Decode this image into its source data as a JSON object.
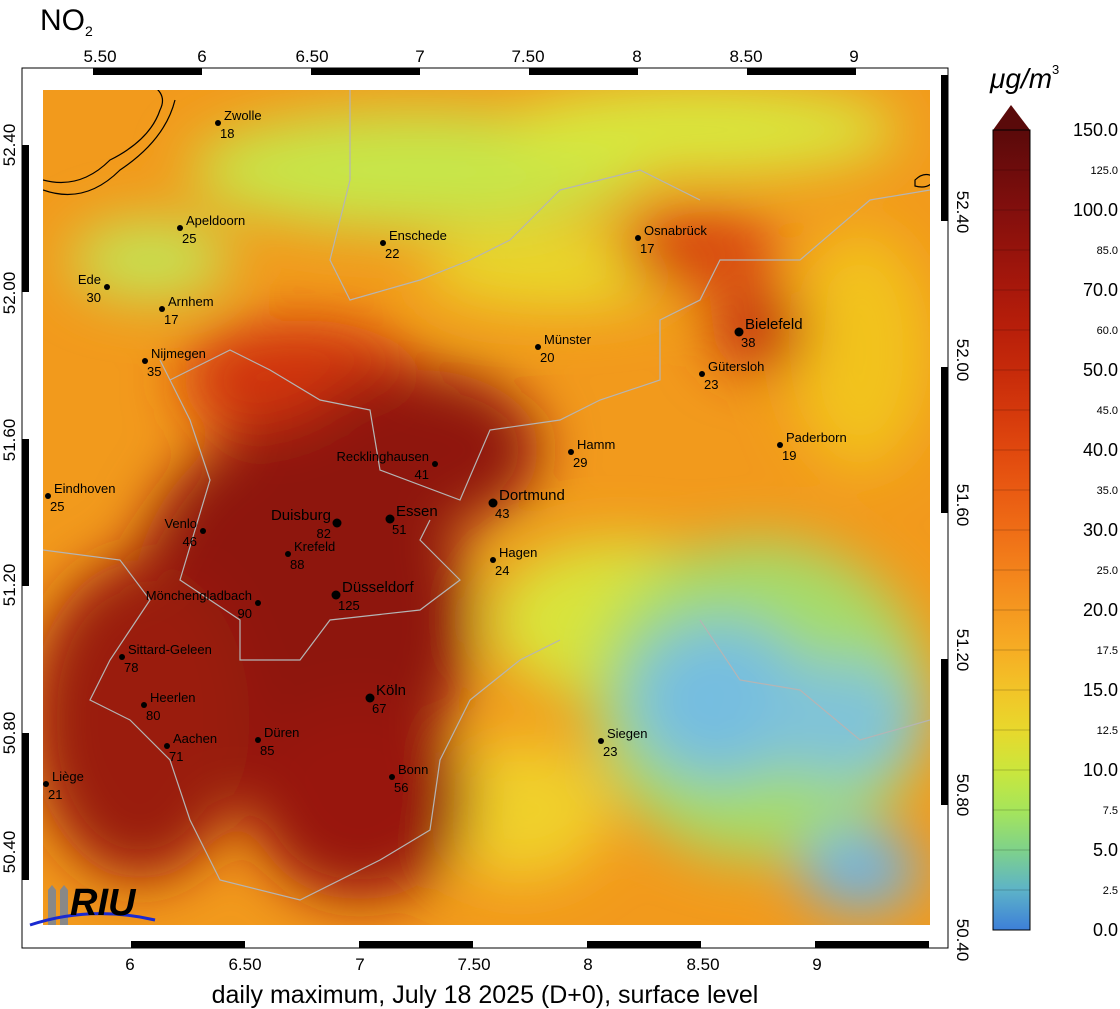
{
  "title": {
    "text": "NO",
    "subscript": "2"
  },
  "unit": {
    "text": "μg/m",
    "superscript": "3"
  },
  "caption": "daily maximum, July 18 2025 (D+0), surface level",
  "logo": "RIU",
  "top_axis": [
    "5.50",
    "6",
    "6.50",
    "7",
    "7.50",
    "8",
    "8.50",
    "9"
  ],
  "bottom_axis": [
    "6",
    "6.50",
    "7",
    "7.50",
    "8",
    "8.50",
    "9"
  ],
  "left_axis": [
    "52.40",
    "52.00",
    "51.60",
    "51.20",
    "50.80",
    "50.40"
  ],
  "right_axis": [
    "52.40",
    "52.00",
    "51.60",
    "51.20",
    "50.80",
    "50.40"
  ],
  "colorbar": [
    "150.0",
    "125.0",
    "100.0",
    "85.0",
    "70.0",
    "60.0",
    "50.0",
    "45.0",
    "40.0",
    "35.0",
    "30.0",
    "25.0",
    "20.0",
    "17.5",
    "15.0",
    "12.5",
    "10.0",
    "7.5",
    "5.0",
    "2.5",
    "0.0"
  ],
  "cities": [
    {
      "name": "Zwolle",
      "value": 18
    },
    {
      "name": "Apeldoorn",
      "value": 25
    },
    {
      "name": "Enschede",
      "value": 22
    },
    {
      "name": "Osnabrück",
      "value": 17
    },
    {
      "name": "Ede",
      "value": 30
    },
    {
      "name": "Arnhem",
      "value": 17
    },
    {
      "name": "Münster",
      "value": 20
    },
    {
      "name": "Bielefeld",
      "value": 38
    },
    {
      "name": "Nijmegen",
      "value": 35
    },
    {
      "name": "Gütersloh",
      "value": 23
    },
    {
      "name": "Hamm",
      "value": 29
    },
    {
      "name": "Paderborn",
      "value": 19
    },
    {
      "name": "Recklinghausen",
      "value": 41
    },
    {
      "name": "Eindhoven",
      "value": 25
    },
    {
      "name": "Dortmund",
      "value": 43
    },
    {
      "name": "Duisburg",
      "value": 82
    },
    {
      "name": "Essen",
      "value": 51
    },
    {
      "name": "Venlo",
      "value": 46
    },
    {
      "name": "Krefeld",
      "value": 88
    },
    {
      "name": "Hagen",
      "value": 24
    },
    {
      "name": "Düsseldorf",
      "value": 125
    },
    {
      "name": "Mönchengladbach",
      "value": 90
    },
    {
      "name": "Sittard-Geleen",
      "value": 78
    },
    {
      "name": "Köln",
      "value": 67
    },
    {
      "name": "Heerlen",
      "value": 80
    },
    {
      "name": "Aachen",
      "value": 71
    },
    {
      "name": "Düren",
      "value": 85
    },
    {
      "name": "Siegen",
      "value": 23
    },
    {
      "name": "Bonn",
      "value": 56
    },
    {
      "name": "Liège",
      "value": 21
    }
  ]
}
